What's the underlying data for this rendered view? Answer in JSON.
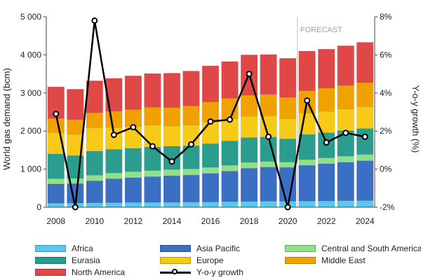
{
  "chart_data": {
    "type": "bar",
    "subtype": "stacked-bar-with-line",
    "title": "",
    "ylabel": "World gas demand (bcm)",
    "y2label": "Y-o-y growth (%)",
    "ylim": [
      0,
      5000
    ],
    "y2lim": [
      -2,
      8
    ],
    "yticks": [
      "0",
      "1 000",
      "2 000",
      "3 000",
      "4 000",
      "5 000"
    ],
    "y2ticks": [
      "-2%",
      "0%",
      "2%",
      "4%",
      "6%",
      "8%"
    ],
    "xtick_labels": [
      "2008",
      "2010",
      "2012",
      "2014",
      "2016",
      "2018",
      "2020",
      "2022",
      "2024"
    ],
    "categories": [
      "2008",
      "2009",
      "2010",
      "2011",
      "2012",
      "2013",
      "2014",
      "2015",
      "2016",
      "2017",
      "2018",
      "2019",
      "2020",
      "2021",
      "2022",
      "2023",
      "2024"
    ],
    "forecast_label": "FORECAST",
    "forecast_start": "2021",
    "series": [
      {
        "name": "Africa",
        "color": "#5bc8ee",
        "values": [
          105,
          110,
          115,
          120,
          125,
          128,
          130,
          133,
          138,
          145,
          152,
          158,
          155,
          160,
          165,
          170,
          175
        ]
      },
      {
        "name": "Asia Pacific",
        "color": "#3a6fc4",
        "values": [
          505,
          510,
          575,
          625,
          650,
          675,
          695,
          710,
          750,
          800,
          870,
          895,
          890,
          940,
          975,
          1010,
          1045
        ]
      },
      {
        "name": "Central and South America",
        "color": "#8fe088",
        "values": [
          140,
          135,
          150,
          155,
          160,
          160,
          165,
          163,
          160,
          155,
          155,
          150,
          140,
          150,
          155,
          160,
          165
        ]
      },
      {
        "name": "Eurasia",
        "color": "#2a9d8f",
        "values": [
          650,
          600,
          630,
          620,
          610,
          615,
          610,
          605,
          620,
          640,
          650,
          640,
          610,
          660,
          660,
          670,
          680
        ]
      },
      {
        "name": "Europe",
        "color": "#f7ca18",
        "values": [
          555,
          555,
          610,
          575,
          575,
          575,
          530,
          545,
          570,
          580,
          560,
          550,
          530,
          560,
          560,
          565,
          570
        ]
      },
      {
        "name": "Middle East",
        "color": "#f0a202",
        "values": [
          375,
          390,
          400,
          425,
          445,
          470,
          485,
          505,
          525,
          540,
          555,
          570,
          560,
          590,
          610,
          620,
          635
        ]
      },
      {
        "name": "North America",
        "color": "#e04848",
        "values": [
          830,
          800,
          840,
          865,
          885,
          887,
          905,
          914,
          948,
          965,
          1058,
          1047,
          1025,
          1040,
          1025,
          1045,
          1060
        ]
      }
    ],
    "line_series": {
      "name": "Y-o-y growth",
      "color": "#000000",
      "values": [
        2.9,
        -2.0,
        7.8,
        1.8,
        2.2,
        1.2,
        0.4,
        1.3,
        2.5,
        2.6,
        5.0,
        1.7,
        -2.0,
        3.6,
        1.4,
        1.9,
        1.7
      ]
    },
    "legend": {
      "position": "bottom",
      "items": [
        {
          "label": "Africa",
          "kind": "bar",
          "color": "#5bc8ee"
        },
        {
          "label": "Asia Pacific",
          "kind": "bar",
          "color": "#3a6fc4"
        },
        {
          "label": "Central and South America",
          "kind": "bar",
          "color": "#8fe088"
        },
        {
          "label": "Eurasia",
          "kind": "bar",
          "color": "#2a9d8f"
        },
        {
          "label": "Europe",
          "kind": "bar",
          "color": "#f7ca18"
        },
        {
          "label": "Middle East",
          "kind": "bar",
          "color": "#f0a202"
        },
        {
          "label": "North America",
          "kind": "bar",
          "color": "#e04848"
        },
        {
          "label": "Y-o-y growth",
          "kind": "line",
          "color": "#000000"
        }
      ]
    }
  }
}
